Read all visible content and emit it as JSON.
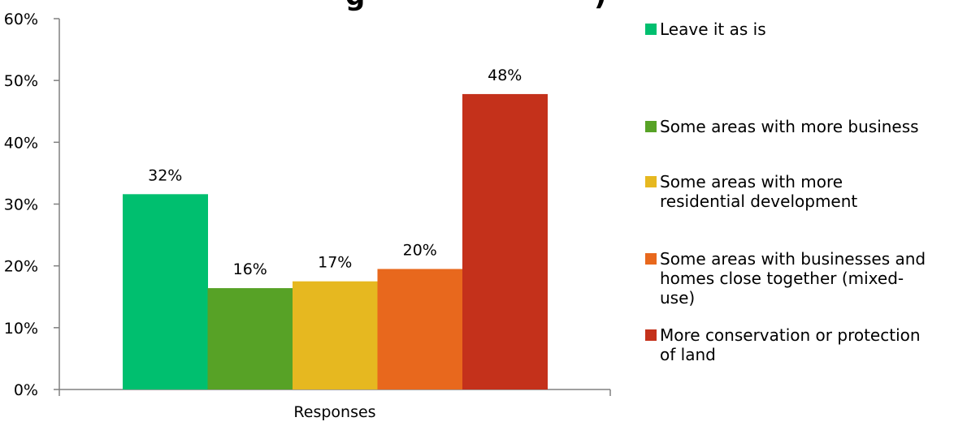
{
  "chart_data": {
    "type": "bar",
    "title_fragments": [
      "g",
      ")"
    ],
    "categories": [
      "Responses"
    ],
    "series": [
      {
        "name": "Leave it as is",
        "values": [
          0.316
        ],
        "label": "32%",
        "color": "#00bf6f"
      },
      {
        "name": "Some areas with more business",
        "values": [
          0.164
        ],
        "label": "16%",
        "color": "#57a226"
      },
      {
        "name": "Some areas with more residential development",
        "values": [
          0.175
        ],
        "label": "17%",
        "color": "#e6b820"
      },
      {
        "name": "Some areas with businesses and homes close together (mixed-use)",
        "values": [
          0.195
        ],
        "label": "20%",
        "color": "#e8681d"
      },
      {
        "name": "More conservation or protection of land",
        "values": [
          0.478
        ],
        "label": "48%",
        "color": "#c4311b"
      }
    ],
    "legend_lines": [
      [
        "Leave it as is"
      ],
      [
        "Some areas with more business"
      ],
      [
        "Some areas with more",
        "residential development"
      ],
      [
        "Some areas with businesses and",
        "homes close together (mixed-",
        "use)"
      ],
      [
        "More conservation or protection",
        "of land"
      ]
    ],
    "yticks": [
      "0%",
      "10%",
      "20%",
      "30%",
      "40%",
      "50%",
      "60%"
    ],
    "ylim": [
      0,
      0.6
    ],
    "xlabel": "",
    "ylabel": "",
    "grid": false,
    "legend_position": "right"
  }
}
